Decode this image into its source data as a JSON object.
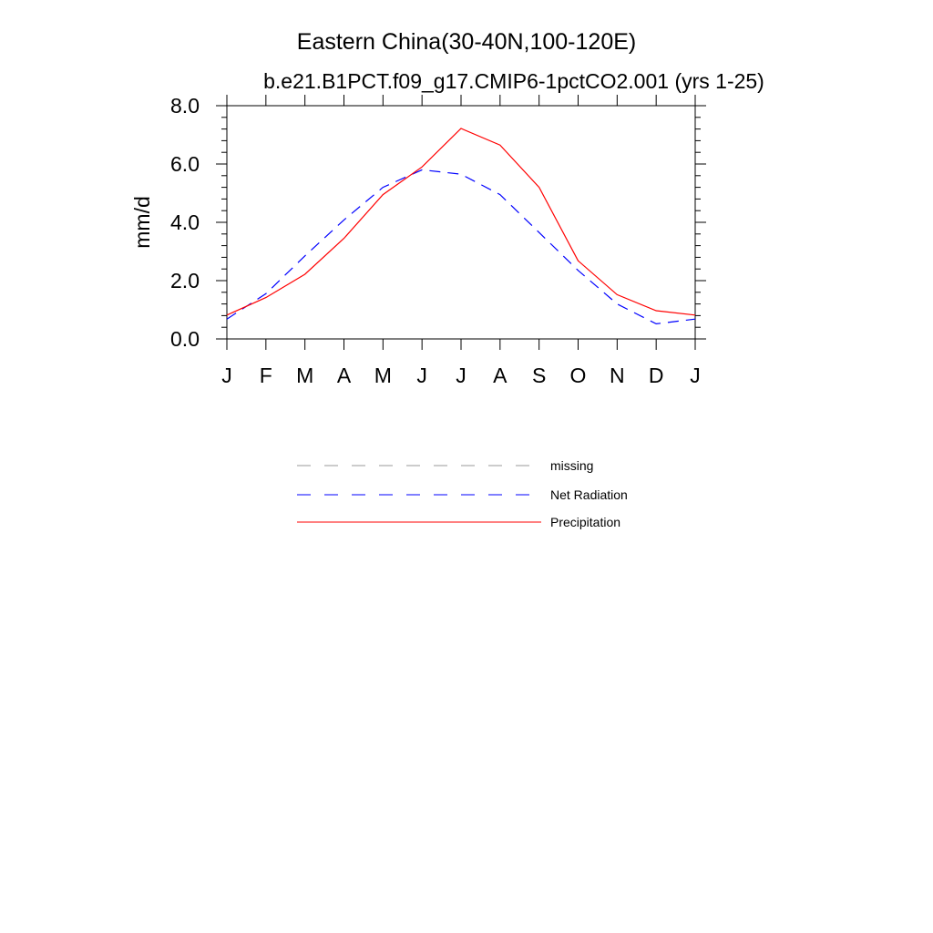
{
  "chart_data": {
    "type": "line",
    "title": "Eastern China(30-40N,100-120E)",
    "subtitle": "b.e21.B1PCT.f09_g17.CMIP6-1pctCO2.001 (yrs 1-25)",
    "xlabel": "",
    "ylabel": "mm/d",
    "ylim": [
      0,
      8
    ],
    "yticks": [
      "0.0",
      "2.0",
      "4.0",
      "6.0",
      "8.0"
    ],
    "ytick_values": [
      0,
      2,
      4,
      6,
      8
    ],
    "categories": [
      "J",
      "F",
      "M",
      "A",
      "M",
      "J",
      "J",
      "A",
      "S",
      "O",
      "N",
      "D",
      "J"
    ],
    "grid": false,
    "legend_position": "below",
    "series": [
      {
        "name": "Net Radiation",
        "color": "#0000ff",
        "dash": "dashed",
        "values": [
          0.68,
          1.55,
          2.85,
          4.08,
          5.2,
          5.8,
          5.65,
          4.95,
          3.65,
          2.35,
          1.2,
          0.52,
          0.68
        ]
      },
      {
        "name": "Precipitation",
        "color": "#ff0000",
        "dash": "solid",
        "values": [
          0.82,
          1.42,
          2.22,
          3.45,
          4.95,
          5.9,
          7.22,
          6.65,
          5.2,
          2.68,
          1.52,
          0.97,
          0.82
        ]
      }
    ],
    "legend": [
      {
        "name": "missing",
        "color": "#999999",
        "dash": "dashed"
      },
      {
        "name": "Net Radiation",
        "color": "#0000ff",
        "dash": "dashed"
      },
      {
        "name": "Precipitation",
        "color": "#ff0000",
        "dash": "solid"
      }
    ]
  }
}
